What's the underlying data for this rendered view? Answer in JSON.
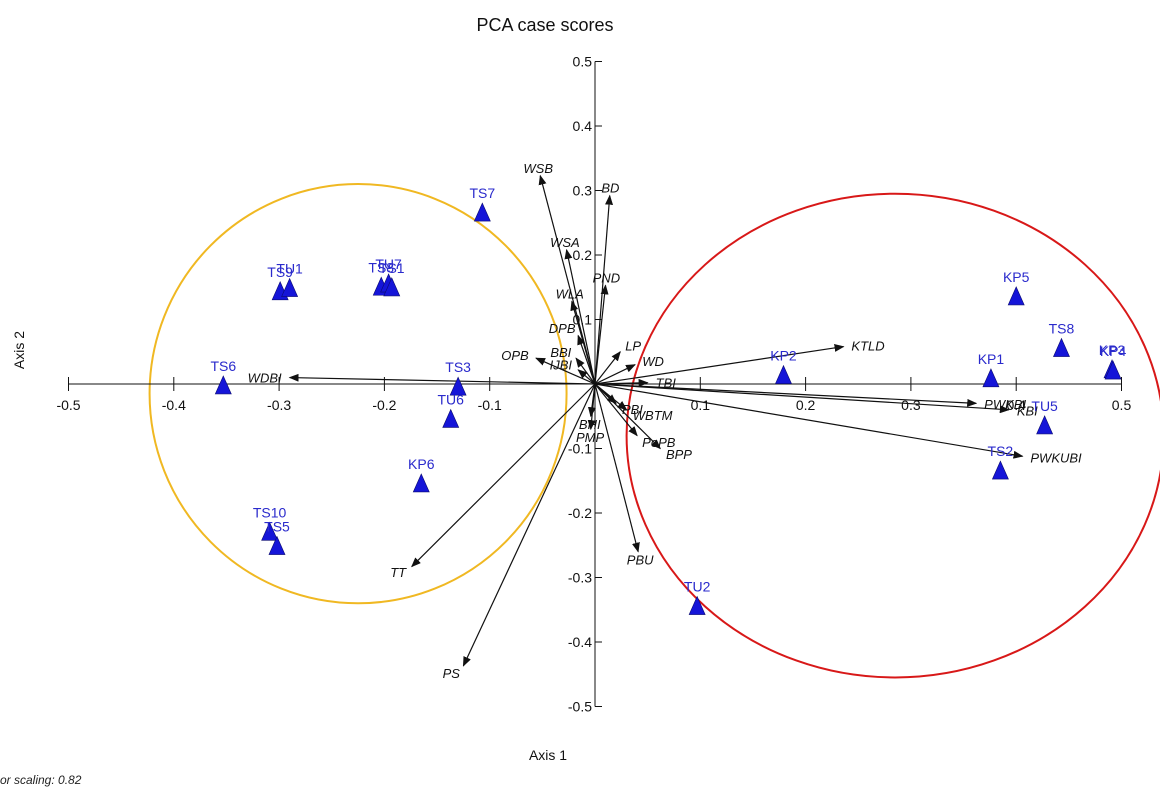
{
  "chart_data": {
    "type": "scatter",
    "title": "PCA case scores",
    "xlabel": "Axis 1",
    "ylabel": "Axis 2",
    "xlim": [
      -0.5,
      0.5
    ],
    "ylim": [
      -0.5,
      0.5
    ],
    "x_ticks": [
      "-0.5",
      "-0.4",
      "-0.3",
      "-0.2",
      "-0.1",
      "0.1",
      "0.2",
      "0.3",
      "0.4",
      "0.5"
    ],
    "y_ticks": [
      "0.5",
      "0.4",
      "0.3",
      "0.2",
      "0.1",
      "-0.1",
      "-0.2",
      "-0.3",
      "-0.4",
      "-0.5"
    ],
    "grid": false,
    "footnote": "or scaling: 0.82",
    "marker_color": "#1515d8",
    "label_color": "#2a2acc",
    "cases": [
      {
        "label": "TS7",
        "x": -0.107,
        "y": 0.265
      },
      {
        "label": "TS9",
        "x": -0.299,
        "y": 0.143
      },
      {
        "label": "TU1",
        "x": -0.29,
        "y": 0.148
      },
      {
        "label": "TS8",
        "x": -0.203,
        "y": 0.15
      },
      {
        "label": "TU7",
        "x": -0.196,
        "y": 0.155
      },
      {
        "label": "TS1",
        "x": -0.193,
        "y": 0.149
      },
      {
        "label": "TS6",
        "x": -0.353,
        "y": -0.003
      },
      {
        "label": "TS3",
        "x": -0.13,
        "y": -0.005
      },
      {
        "label": "TU6",
        "x": -0.137,
        "y": -0.055
      },
      {
        "label": "KP6",
        "x": -0.165,
        "y": -0.155
      },
      {
        "label": "TS10",
        "x": -0.309,
        "y": -0.23
      },
      {
        "label": "TS5",
        "x": -0.302,
        "y": -0.252
      },
      {
        "label": "TU2",
        "x": 0.097,
        "y": -0.345
      },
      {
        "label": "KP2",
        "x": 0.179,
        "y": 0.013
      },
      {
        "label": "KP5",
        "x": 0.4,
        "y": 0.135
      },
      {
        "label": "TS8",
        "x": 0.443,
        "y": 0.055
      },
      {
        "label": "KP1",
        "x": 0.376,
        "y": 0.008
      },
      {
        "label": "KP3",
        "x": 0.491,
        "y": 0.022
      },
      {
        "label": "KP4",
        "x": 0.492,
        "y": 0.02
      },
      {
        "label": "TS2",
        "x": 0.385,
        "y": -0.135
      },
      {
        "label": "TU5",
        "x": 0.427,
        "y": -0.065
      }
    ],
    "vectors": [
      {
        "label": "WSB",
        "x": -0.052,
        "y": 0.323
      },
      {
        "label": "BD",
        "x": 0.014,
        "y": 0.292
      },
      {
        "label": "WSA",
        "x": -0.027,
        "y": 0.208
      },
      {
        "label": "PND",
        "x": 0.01,
        "y": 0.153
      },
      {
        "label": "WLA",
        "x": -0.022,
        "y": 0.128
      },
      {
        "label": "DPB",
        "x": -0.016,
        "y": 0.075
      },
      {
        "label": "OPB",
        "x": -0.056,
        "y": 0.04
      },
      {
        "label": "BBI",
        "x": -0.018,
        "y": 0.04
      },
      {
        "label": "IJBI",
        "x": -0.016,
        "y": 0.022
      },
      {
        "label": "LP",
        "x": 0.024,
        "y": 0.05
      },
      {
        "label": "WD",
        "x": 0.038,
        "y": 0.03
      },
      {
        "label": "TBI",
        "x": 0.05,
        "y": 0.002
      },
      {
        "label": "KTLD",
        "x": 0.236,
        "y": 0.058
      },
      {
        "label": "WDBI",
        "x": -0.29,
        "y": 0.01
      },
      {
        "label": "PWKBI",
        "x": 0.362,
        "y": -0.03
      },
      {
        "label": "KBI",
        "x": 0.393,
        "y": -0.04
      },
      {
        "label": "PWKUBI",
        "x": 0.406,
        "y": -0.112
      },
      {
        "label": "BPP",
        "x": 0.062,
        "y": -0.1
      },
      {
        "label": "PoPB",
        "x": 0.04,
        "y": -0.08
      },
      {
        "label": "WBTM",
        "x": 0.03,
        "y": -0.04
      },
      {
        "label": "PBI",
        "x": 0.02,
        "y": -0.03
      },
      {
        "label": "BHI",
        "x": -0.004,
        "y": -0.05
      },
      {
        "label": "PMP",
        "x": -0.004,
        "y": -0.07
      },
      {
        "label": "PBU",
        "x": 0.041,
        "y": -0.26
      },
      {
        "label": "TT",
        "x": -0.174,
        "y": -0.283
      },
      {
        "label": "PS",
        "x": -0.125,
        "y": -0.437
      }
    ],
    "groups": [
      {
        "color": "#f0b822",
        "cx": -0.225,
        "cy": -0.015,
        "rx": 0.198,
        "ry": 0.325
      },
      {
        "color": "#d81818",
        "cx": 0.285,
        "cy": -0.08,
        "rx": 0.255,
        "ry": 0.375
      }
    ]
  }
}
